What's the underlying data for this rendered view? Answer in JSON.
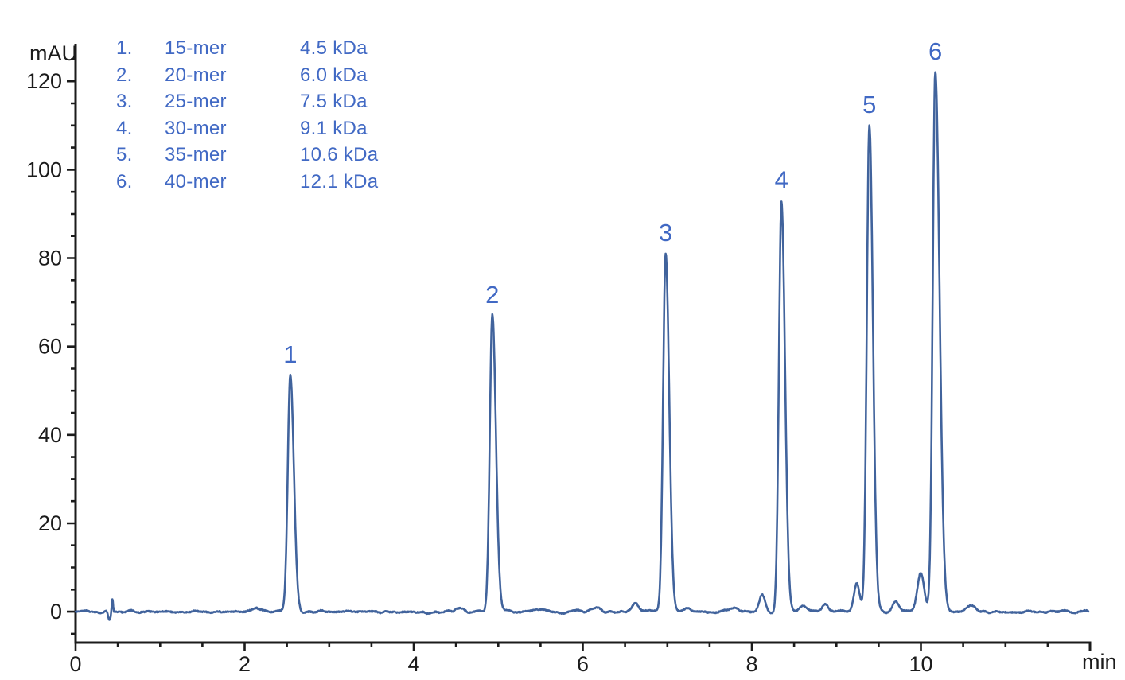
{
  "chart_data": {
    "type": "line",
    "title": "",
    "xlabel": "min",
    "ylabel": "mAU",
    "xlim": [
      0,
      12
    ],
    "ylim": [
      -7,
      128.5
    ],
    "x_labeled_ticks": [
      0,
      2,
      4,
      6,
      8,
      10
    ],
    "x_major_tick_step": 2,
    "x_minor_tick_step": 0.5,
    "y_labeled_ticks": [
      0,
      20,
      40,
      60,
      80,
      100,
      120
    ],
    "y_minor_tick_step": 5,
    "grid": false,
    "legend_position": "top-left",
    "colors": {
      "trace": "#41639c",
      "axis": "#1b1b1b",
      "labels": "#4169c4",
      "background": "#ffffff"
    },
    "legend": [
      {
        "num": "1.",
        "name": "15-mer",
        "mass": "4.5 kDa"
      },
      {
        "num": "2.",
        "name": "20-mer",
        "mass": "6.0 kDa"
      },
      {
        "num": "3.",
        "name": "25-mer",
        "mass": "7.5 kDa"
      },
      {
        "num": "4.",
        "name": "30-mer",
        "mass": "9.1 kDa"
      },
      {
        "num": "5.",
        "name": "35-mer",
        "mass": "10.6 kDa"
      },
      {
        "num": "6.",
        "name": "40-mer",
        "mass": "12.1 kDa"
      }
    ],
    "peaks": [
      {
        "label": "1",
        "retention_min": 2.54,
        "height_mau": 53.5
      },
      {
        "label": "2",
        "retention_min": 4.93,
        "height_mau": 67
      },
      {
        "label": "3",
        "retention_min": 6.98,
        "height_mau": 81
      },
      {
        "label": "4",
        "retention_min": 8.35,
        "height_mau": 93
      },
      {
        "label": "5",
        "retention_min": 9.39,
        "height_mau": 110
      },
      {
        "label": "6",
        "retention_min": 10.17,
        "height_mau": 122,
        "sigma_right_min": 0.05
      }
    ],
    "peak_shape": {
      "sigma_left_min": 0.03,
      "sigma_right_min": 0.042
    },
    "minor_features": [
      {
        "t_min": 0.4,
        "height_mau": -2.0,
        "sigma_min": 0.015
      },
      {
        "t_min": 0.435,
        "height_mau": 3.0,
        "sigma_min": 0.008
      },
      {
        "t_min": 2.12,
        "height_mau": 0.9,
        "sigma_min": 0.05
      },
      {
        "t_min": 4.55,
        "height_mau": 0.8,
        "sigma_min": 0.05
      },
      {
        "t_min": 5.45,
        "height_mau": 0.7,
        "sigma_min": 0.06
      },
      {
        "t_min": 6.15,
        "height_mau": 0.9,
        "sigma_min": 0.05
      },
      {
        "t_min": 6.62,
        "height_mau": 2.2,
        "sigma_min": 0.035
      },
      {
        "t_min": 7.25,
        "height_mau": 0.9,
        "sigma_min": 0.04
      },
      {
        "t_min": 7.8,
        "height_mau": 1.0,
        "sigma_min": 0.05
      },
      {
        "t_min": 8.12,
        "height_mau": 3.8,
        "sigma_min": 0.035
      },
      {
        "t_min": 8.6,
        "height_mau": 1.3,
        "sigma_min": 0.04
      },
      {
        "t_min": 8.87,
        "height_mau": 1.5,
        "sigma_min": 0.04
      },
      {
        "t_min": 9.24,
        "height_mau": 6.5,
        "sigma_min": 0.033
      },
      {
        "t_min": 9.7,
        "height_mau": 2.5,
        "sigma_min": 0.04
      },
      {
        "t_min": 10.0,
        "height_mau": 9.0,
        "sigma_min": 0.04
      },
      {
        "t_min": 10.6,
        "height_mau": 1.5,
        "sigma_min": 0.05
      }
    ],
    "baseline_mau": 0,
    "noise_amplitude_mau": 0.3
  }
}
